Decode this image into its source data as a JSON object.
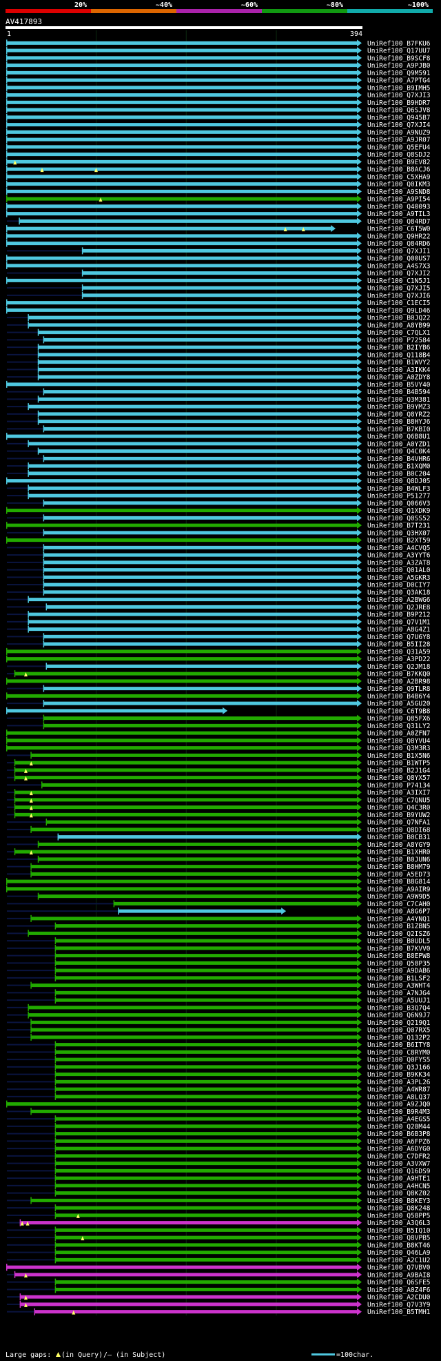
{
  "chart_data": {
    "type": "alignment_overview",
    "title": "AV417893",
    "query_length": 394,
    "ruler": {
      "start_label": "1",
      "end_label": "394"
    },
    "scale_labels": [
      "20%",
      "~40%",
      "~60%",
      "~80%",
      "~100%"
    ],
    "scale_colors": [
      "#dd0000",
      "#dd6600",
      "#aa22aa",
      "#119911",
      "#11aaaa"
    ],
    "colors": {
      "cyan": "#4fc8e0",
      "green": "#22aa00",
      "magenta": "#cc33cc",
      "yellow": "#ffff66",
      "grid": "#0c2a10"
    },
    "grid_x": [
      100,
      200,
      300
    ],
    "hits": [
      {
        "id": "UniRef100_B7FKU6",
        "s": 1,
        "c": "cyan"
      },
      {
        "id": "UniRef100_Q17UU7",
        "s": 1,
        "c": "cyan"
      },
      {
        "id": "UniRef100_B9SCF8",
        "s": 1,
        "c": "cyan"
      },
      {
        "id": "UniRef100_A9PJB0",
        "s": 1,
        "c": "cyan"
      },
      {
        "id": "UniRef100_Q9M591",
        "s": 1,
        "c": "cyan"
      },
      {
        "id": "UniRef100_A7PTG4",
        "s": 1,
        "c": "cyan"
      },
      {
        "id": "UniRef100_B9IMH5",
        "s": 1,
        "c": "cyan"
      },
      {
        "id": "UniRef100_Q7XJI3",
        "s": 1,
        "c": "cyan"
      },
      {
        "id": "UniRef100_B9HDR7",
        "s": 1,
        "c": "cyan"
      },
      {
        "id": "UniRef100_Q6SJV8",
        "s": 1,
        "c": "cyan"
      },
      {
        "id": "UniRef100_Q945B7",
        "s": 1,
        "c": "cyan"
      },
      {
        "id": "UniRef100_Q7XJI4",
        "s": 1,
        "c": "cyan"
      },
      {
        "id": "UniRef100_A9NUZ9",
        "s": 1,
        "c": "cyan"
      },
      {
        "id": "UniRef100_A9JR07",
        "s": 1,
        "c": "cyan"
      },
      {
        "id": "UniRef100_Q5EFU4",
        "s": 1,
        "c": "cyan"
      },
      {
        "id": "UniRef100_Q8SDJ2",
        "s": 1,
        "c": "cyan"
      },
      {
        "id": "UniRef100_B9EV82",
        "s": 1,
        "c": "cyan",
        "m": [
          10
        ]
      },
      {
        "id": "UniRef100_B8ACJ6",
        "s": 1,
        "c": "cyan",
        "m": [
          40,
          100
        ]
      },
      {
        "id": "UniRef100_C5XHA9",
        "s": 1,
        "c": "cyan"
      },
      {
        "id": "UniRef100_Q0IKM3",
        "s": 1,
        "c": "cyan"
      },
      {
        "id": "UniRef100_A9SND8",
        "s": 1,
        "c": "cyan"
      },
      {
        "id": "UniRef100_A9PI54",
        "s": 1,
        "c": "green",
        "m": [
          105
        ]
      },
      {
        "id": "UniRef100_Q40093",
        "s": 1,
        "c": "cyan"
      },
      {
        "id": "UniRef100_A9TIL3",
        "s": 1,
        "c": "cyan"
      },
      {
        "id": "UniRef100_Q84RD7",
        "s": 15,
        "c": "cyan"
      },
      {
        "id": "UniRef100_C6T5W0",
        "s": 1,
        "e": 365,
        "c": "cyan",
        "m": [
          310,
          330
        ]
      },
      {
        "id": "UniRef100_Q9HR22",
        "s": 1,
        "c": "cyan"
      },
      {
        "id": "UniRef100_Q84RD6",
        "s": 1,
        "c": "cyan"
      },
      {
        "id": "UniRef100_Q7XJI1",
        "s": 85,
        "c": "cyan"
      },
      {
        "id": "UniRef100_Q00US7",
        "s": 1,
        "c": "cyan"
      },
      {
        "id": "UniRef100_A4S7X3",
        "s": 1,
        "c": "cyan"
      },
      {
        "id": "UniRef100_Q7XJI2",
        "s": 85,
        "c": "cyan"
      },
      {
        "id": "UniRef100_C1N5J1",
        "s": 1,
        "c": "cyan"
      },
      {
        "id": "UniRef100_Q7XJI5",
        "s": 85,
        "c": "cyan"
      },
      {
        "id": "UniRef100_Q7XJI6",
        "s": 85,
        "c": "cyan"
      },
      {
        "id": "UniRef100_C1ECI5",
        "s": 1,
        "c": "cyan"
      },
      {
        "id": "UniRef100_Q9LD46",
        "s": 1,
        "c": "cyan"
      },
      {
        "id": "UniRef100_B0JQ22",
        "s": 25,
        "c": "cyan"
      },
      {
        "id": "UniRef100_A8YB99",
        "s": 25,
        "c": "cyan"
      },
      {
        "id": "UniRef100_C7QLX1",
        "s": 36,
        "c": "cyan"
      },
      {
        "id": "UniRef100_P72584",
        "s": 42,
        "c": "cyan"
      },
      {
        "id": "UniRef100_B2IYB6",
        "s": 36,
        "c": "cyan"
      },
      {
        "id": "UniRef100_Q118B4",
        "s": 36,
        "c": "cyan"
      },
      {
        "id": "UniRef100_B1WVY2",
        "s": 36,
        "c": "cyan"
      },
      {
        "id": "UniRef100_A3IKK4",
        "s": 36,
        "c": "cyan"
      },
      {
        "id": "UniRef100_A0ZDY8",
        "s": 36,
        "c": "cyan"
      },
      {
        "id": "UniRef100_B5VY40",
        "s": 1,
        "c": "cyan"
      },
      {
        "id": "UniRef100_B4B594",
        "s": 42,
        "c": "cyan"
      },
      {
        "id": "UniRef100_Q3M381",
        "s": 36,
        "c": "cyan"
      },
      {
        "id": "UniRef100_B9YMZ3",
        "s": 25,
        "c": "cyan"
      },
      {
        "id": "UniRef100_Q8YRZ2",
        "s": 36,
        "c": "cyan"
      },
      {
        "id": "UniRef100_B8HYJ6",
        "s": 36,
        "c": "cyan"
      },
      {
        "id": "UniRef100_B7KBI0",
        "s": 42,
        "c": "cyan"
      },
      {
        "id": "UniRef100_Q6B8U1",
        "s": 1,
        "c": "cyan"
      },
      {
        "id": "UniRef100_A0YZD1",
        "s": 25,
        "c": "cyan"
      },
      {
        "id": "UniRef100_Q4C0K4",
        "s": 36,
        "c": "cyan"
      },
      {
        "id": "UniRef100_B4VHR6",
        "s": 42,
        "c": "cyan"
      },
      {
        "id": "UniRef100_B1XQM0",
        "s": 25,
        "c": "cyan"
      },
      {
        "id": "UniRef100_B0C204",
        "s": 25,
        "c": "cyan"
      },
      {
        "id": "UniRef100_Q8DJ05",
        "s": 1,
        "c": "cyan"
      },
      {
        "id": "UniRef100_B4WLF3",
        "s": 25,
        "c": "cyan"
      },
      {
        "id": "UniRef100_P51277",
        "s": 25,
        "c": "cyan"
      },
      {
        "id": "UniRef100_Q066V3",
        "s": 42,
        "c": "cyan"
      },
      {
        "id": "UniRef100_Q1XDK9",
        "s": 1,
        "c": "green"
      },
      {
        "id": "UniRef100_Q0SS52",
        "s": 42,
        "c": "cyan"
      },
      {
        "id": "UniRef100_B7T231",
        "s": 1,
        "c": "green"
      },
      {
        "id": "UniRef100_Q3HX07",
        "s": 42,
        "c": "cyan"
      },
      {
        "id": "UniRef100_B2XT59",
        "s": 1,
        "c": "green"
      },
      {
        "id": "UniRef100_A4CVQ5",
        "s": 42,
        "c": "cyan"
      },
      {
        "id": "UniRef100_A3YYT6",
        "s": 42,
        "c": "cyan"
      },
      {
        "id": "UniRef100_A3ZAT8",
        "s": 42,
        "c": "cyan"
      },
      {
        "id": "UniRef100_Q01AL0",
        "s": 42,
        "c": "cyan"
      },
      {
        "id": "UniRef100_A5GKR3",
        "s": 42,
        "c": "cyan"
      },
      {
        "id": "UniRef100_D0CIY7",
        "s": 42,
        "c": "cyan"
      },
      {
        "id": "UniRef100_Q3AK18",
        "s": 42,
        "c": "cyan"
      },
      {
        "id": "UniRef100_A2BWG6",
        "s": 25,
        "c": "cyan"
      },
      {
        "id": "UniRef100_Q2JRE8",
        "s": 45,
        "c": "cyan"
      },
      {
        "id": "UniRef100_B9P212",
        "s": 25,
        "c": "cyan"
      },
      {
        "id": "UniRef100_Q7V1M1",
        "s": 25,
        "c": "cyan"
      },
      {
        "id": "UniRef100_A8G4Z1",
        "s": 25,
        "c": "cyan"
      },
      {
        "id": "UniRef100_Q7U6Y8",
        "s": 42,
        "c": "cyan"
      },
      {
        "id": "UniRef100_B5II28",
        "s": 42,
        "c": "cyan"
      },
      {
        "id": "UniRef100_Q31A59",
        "s": 1,
        "c": "green"
      },
      {
        "id": "UniRef100_A3PD22",
        "s": 1,
        "c": "green"
      },
      {
        "id": "UniRef100_Q2JM18",
        "s": 45,
        "c": "cyan"
      },
      {
        "id": "UniRef100_B7KKQ0",
        "s": 10,
        "c": "green",
        "m": [
          22
        ]
      },
      {
        "id": "UniRef100_A2BR98",
        "s": 1,
        "c": "green"
      },
      {
        "id": "UniRef100_Q9TLR8",
        "s": 42,
        "c": "cyan"
      },
      {
        "id": "UniRef100_B4B6Y4",
        "s": 1,
        "c": "green"
      },
      {
        "id": "UniRef100_A5GU20",
        "s": 42,
        "c": "cyan"
      },
      {
        "id": "UniRef100_C6T9B8",
        "s": 1,
        "e": 245,
        "c": "cyan"
      },
      {
        "id": "UniRef100_Q85FX6",
        "s": 42,
        "c": "green"
      },
      {
        "id": "UniRef100_Q31LY2",
        "s": 42,
        "c": "green"
      },
      {
        "id": "UniRef100_A0ZFN7",
        "s": 1,
        "c": "green"
      },
      {
        "id": "UniRef100_Q8YVU4",
        "s": 1,
        "c": "green"
      },
      {
        "id": "UniRef100_Q3M3R3",
        "s": 1,
        "c": "green"
      },
      {
        "id": "UniRef100_B1X5N6",
        "s": 28,
        "c": "green"
      },
      {
        "id": "UniRef100_B1WTP5",
        "s": 10,
        "c": "green",
        "m": [
          28
        ]
      },
      {
        "id": "UniRef100_B2J1G4",
        "s": 10,
        "c": "green",
        "m": [
          22
        ]
      },
      {
        "id": "UniRef100_Q8YX57",
        "s": 10,
        "c": "green",
        "m": [
          22
        ]
      },
      {
        "id": "UniRef100_P74134",
        "s": 40,
        "c": "green"
      },
      {
        "id": "UniRef100_A3IXI7",
        "s": 10,
        "c": "green",
        "m": [
          28
        ]
      },
      {
        "id": "UniRef100_C7QNU5",
        "s": 10,
        "c": "green",
        "m": [
          28
        ]
      },
      {
        "id": "UniRef100_Q4C3R0",
        "s": 10,
        "c": "green",
        "m": [
          28
        ]
      },
      {
        "id": "UniRef100_B9YUW2",
        "s": 10,
        "c": "green",
        "m": [
          28
        ]
      },
      {
        "id": "UniRef100_Q7NFA1",
        "s": 45,
        "c": "green"
      },
      {
        "id": "UniRef100_Q8DI68",
        "s": 28,
        "c": "green"
      },
      {
        "id": "UniRef100_B0CB31",
        "s": 58,
        "c": "cyan"
      },
      {
        "id": "UniRef100_A8YGY9",
        "s": 36,
        "c": "green"
      },
      {
        "id": "UniRef100_B1XHR0",
        "s": 10,
        "c": "green",
        "m": [
          28
        ]
      },
      {
        "id": "UniRef100_B0JUN6",
        "s": 36,
        "c": "green"
      },
      {
        "id": "UniRef100_B8HM79",
        "s": 28,
        "c": "green"
      },
      {
        "id": "UniRef100_A5ED73",
        "s": 28,
        "c": "green"
      },
      {
        "id": "UniRef100_B8G814",
        "s": 1,
        "c": "green"
      },
      {
        "id": "UniRef100_A9AIR9",
        "s": 1,
        "c": "green"
      },
      {
        "id": "UniRef100_A9W9D5",
        "s": 36,
        "c": "green"
      },
      {
        "id": "UniRef100_C7CAH0",
        "s": 120,
        "c": "green"
      },
      {
        "id": "UniRef100_A8G6P7",
        "s": 125,
        "e": 310,
        "c": "cyan"
      },
      {
        "id": "UniRef100_A4YNQ1",
        "s": 28,
        "c": "green"
      },
      {
        "id": "UniRef100_B1ZBN5",
        "s": 55,
        "c": "green"
      },
      {
        "id": "UniRef100_Q2ISZ6",
        "s": 25,
        "c": "green"
      },
      {
        "id": "UniRef100_B0UDL5",
        "s": 55,
        "c": "green"
      },
      {
        "id": "UniRef100_B7KVV0",
        "s": 55,
        "c": "green"
      },
      {
        "id": "UniRef100_B8EPW8",
        "s": 55,
        "c": "green"
      },
      {
        "id": "UniRef100_Q58P35",
        "s": 55,
        "c": "green"
      },
      {
        "id": "UniRef100_A9DAB6",
        "s": 55,
        "c": "green"
      },
      {
        "id": "UniRef100_B1LSF2",
        "s": 55,
        "c": "green"
      },
      {
        "id": "UniRef100_A3WHT4",
        "s": 28,
        "c": "green"
      },
      {
        "id": "UniRef100_A7NJG4",
        "s": 55,
        "c": "green"
      },
      {
        "id": "UniRef100_A5UUJ1",
        "s": 55,
        "c": "green"
      },
      {
        "id": "UniRef100_B3Q7Q4",
        "s": 25,
        "c": "green"
      },
      {
        "id": "UniRef100_Q6N9J7",
        "s": 25,
        "c": "green"
      },
      {
        "id": "UniRef100_Q219Q1",
        "s": 28,
        "c": "green"
      },
      {
        "id": "UniRef100_Q07RX5",
        "s": 28,
        "c": "green"
      },
      {
        "id": "UniRef100_Q132P2",
        "s": 28,
        "c": "green"
      },
      {
        "id": "UniRef100_B6ITY8",
        "s": 55,
        "c": "green"
      },
      {
        "id": "UniRef100_C8RYM0",
        "s": 55,
        "c": "green"
      },
      {
        "id": "UniRef100_Q0FYS5",
        "s": 55,
        "c": "green"
      },
      {
        "id": "UniRef100_Q3J166",
        "s": 55,
        "c": "green"
      },
      {
        "id": "UniRef100_B9KK34",
        "s": 55,
        "c": "green"
      },
      {
        "id": "UniRef100_A3PL26",
        "s": 55,
        "c": "green"
      },
      {
        "id": "UniRef100_A4WR87",
        "s": 55,
        "c": "green"
      },
      {
        "id": "UniRef100_A8LQ37",
        "s": 55,
        "c": "green"
      },
      {
        "id": "UniRef100_A9ZJQ0",
        "s": 1,
        "c": "green"
      },
      {
        "id": "UniRef100_B9R4M3",
        "s": 28,
        "c": "green"
      },
      {
        "id": "UniRef100_A4EGS5",
        "s": 55,
        "c": "green"
      },
      {
        "id": "UniRef100_Q28M44",
        "s": 55,
        "c": "green"
      },
      {
        "id": "UniRef100_B6B3P8",
        "s": 55,
        "c": "green"
      },
      {
        "id": "UniRef100_A6FPZ6",
        "s": 55,
        "c": "green"
      },
      {
        "id": "UniRef100_A6DYG0",
        "s": 55,
        "c": "green"
      },
      {
        "id": "UniRef100_C7DFR2",
        "s": 55,
        "c": "green"
      },
      {
        "id": "UniRef100_A3VXW7",
        "s": 55,
        "c": "green"
      },
      {
        "id": "UniRef100_Q16DS9",
        "s": 55,
        "c": "green"
      },
      {
        "id": "UniRef100_A9HTE1",
        "s": 55,
        "c": "green"
      },
      {
        "id": "UniRef100_A4HCN5",
        "s": 55,
        "c": "green"
      },
      {
        "id": "UniRef100_Q8KZ02",
        "s": 55,
        "c": "green"
      },
      {
        "id": "UniRef100_B8KEY3",
        "s": 28,
        "c": "green"
      },
      {
        "id": "UniRef100_Q8K248",
        "s": 55,
        "c": "green"
      },
      {
        "id": "UniRef100_Q58PP5",
        "s": 55,
        "c": "green",
        "m": [
          80
        ]
      },
      {
        "id": "UniRef100_A3Q6L3",
        "s": 16,
        "c": "magenta",
        "m": [
          18,
          24
        ]
      },
      {
        "id": "UniRef100_B5IQ10",
        "s": 55,
        "c": "green"
      },
      {
        "id": "UniRef100_Q8VPB5",
        "s": 55,
        "c": "green",
        "m": [
          85
        ]
      },
      {
        "id": "UniRef100_B8KT46",
        "s": 55,
        "c": "green"
      },
      {
        "id": "UniRef100_Q46LA9",
        "s": 55,
        "c": "green"
      },
      {
        "id": "UniRef100_A2C1U2",
        "s": 55,
        "c": "green"
      },
      {
        "id": "UniRef100_Q7VBV0",
        "s": 1,
        "c": "magenta"
      },
      {
        "id": "UniRef100_A9BAI8",
        "s": 10,
        "c": "magenta",
        "m": [
          22
        ]
      },
      {
        "id": "UniRef100_Q6SFE5",
        "s": 55,
        "c": "green"
      },
      {
        "id": "UniRef100_A0Z4F6",
        "s": 55,
        "c": "green"
      },
      {
        "id": "UniRef100_A2CDU0",
        "s": 16,
        "c": "magenta",
        "m": [
          22
        ]
      },
      {
        "id": "UniRef100_Q7V3Y9",
        "s": 16,
        "c": "magenta",
        "m": [
          22
        ]
      },
      {
        "id": "UniRef100_B5TMH1",
        "s": 32,
        "c": "magenta",
        "m": [
          75
        ]
      }
    ]
  },
  "footer": {
    "large_gaps_label": "Large gaps:",
    "gap_in_query": "(in Query)",
    "gap_in_subject": "/– (in Subject)",
    "scale_note": "=100char."
  }
}
